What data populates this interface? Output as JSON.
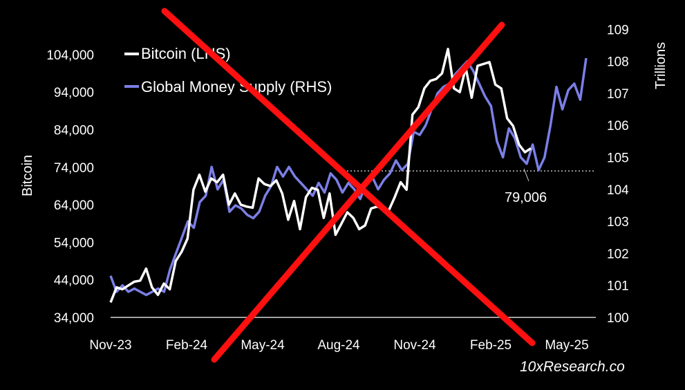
{
  "chart_data": {
    "type": "line",
    "title": "",
    "ylabel_left": "Bitcoin",
    "ylabel_right": "Trillions",
    "ylim_left": [
      34000,
      110000
    ],
    "ylim_right": [
      100,
      109
    ],
    "left_ticks": [
      "34,000",
      "44,000",
      "54,000",
      "64,000",
      "74,000",
      "84,000",
      "94,000",
      "104,000"
    ],
    "right_ticks": [
      "100",
      "101",
      "102",
      "103",
      "104",
      "105",
      "106",
      "107",
      "108",
      "109"
    ],
    "x_tick_labels": [
      "Nov-23",
      "Feb-24",
      "May-24",
      "Aug-24",
      "Nov-24",
      "Feb-25",
      "May-25"
    ],
    "legend_position": "top-left",
    "grid": false,
    "series": [
      {
        "name": "Bitcoin (LHS)",
        "axis": "left",
        "color": "#ffffff",
        "values": [
          38000,
          42000,
          41500,
          42500,
          43500,
          43800,
          47000,
          42000,
          40000,
          43000,
          41500,
          49000,
          51500,
          55000,
          68000,
          72000,
          67500,
          71000,
          70000,
          72000,
          64000,
          67000,
          64000,
          63500,
          63200,
          71000,
          69500,
          69000,
          70500,
          67000,
          60000,
          65000,
          57500,
          66000,
          68500,
          68000,
          60500,
          67000,
          56000,
          59000,
          62000,
          60500,
          57500,
          58500,
          63000,
          63500,
          63000,
          62500,
          66000,
          70000,
          68000,
          88000,
          90000,
          95000,
          97000,
          97500,
          99000,
          105500,
          95000,
          94000,
          100500,
          92500,
          101000,
          101500,
          102000,
          96000,
          95000,
          87000,
          85000,
          80000,
          78000,
          79006
        ]
      },
      {
        "name": "Global Money Supply (RHS)",
        "axis": "right",
        "color": "#7b7fe6",
        "values": [
          101.3,
          100.8,
          101.0,
          100.8,
          100.9,
          100.8,
          100.7,
          100.8,
          100.9,
          100.8,
          101.5,
          102.0,
          102.5,
          103.0,
          102.8,
          103.6,
          103.8,
          104.7,
          104.0,
          104.3,
          103.3,
          103.5,
          103.4,
          103.2,
          103.1,
          103.3,
          103.8,
          104.1,
          104.7,
          104.4,
          104.7,
          104.4,
          104.2,
          104.0,
          103.8,
          104.2,
          103.9,
          104.5,
          104.3,
          103.9,
          104.2,
          104.0,
          103.7,
          104.2,
          104.4,
          104.0,
          104.3,
          104.5,
          104.9,
          104.6,
          104.8,
          105.8,
          105.7,
          106.0,
          106.5,
          107.0,
          107.2,
          107.3,
          107.6,
          107.8,
          108.0,
          107.7,
          107.3,
          106.9,
          106.6,
          105.5,
          105.0,
          105.9,
          105.6,
          105.0,
          104.8,
          105.4,
          104.6,
          105.0,
          106.0,
          107.2,
          106.5,
          107.1,
          107.3,
          106.8,
          108.1
        ]
      }
    ],
    "reference_line": {
      "value": 73000,
      "axis": "left",
      "style": "dotted"
    },
    "annotation": {
      "text": "79,006"
    }
  },
  "watermark": "10xResearch.co"
}
